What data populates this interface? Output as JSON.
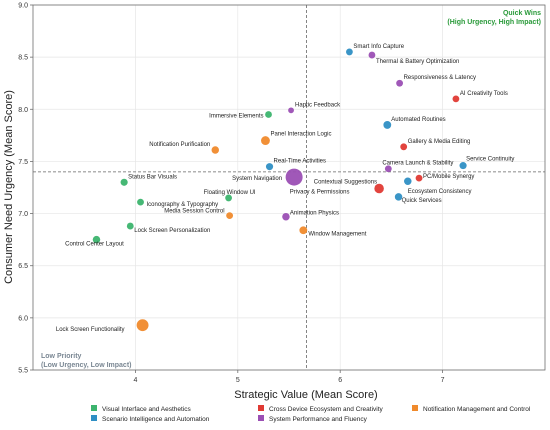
{
  "chart_data": {
    "type": "scatter",
    "title": "",
    "xlabel": "Strategic Value (Mean Score)",
    "ylabel": "Consumer Need Urgency (Mean Score)",
    "xlim": [
      3.0,
      8.0
    ],
    "ylim": [
      5.5,
      9.0
    ],
    "xticks": [
      "4",
      "5",
      "6",
      "7"
    ],
    "yticks": [
      "5.5",
      "6.0",
      "6.5",
      "7.0",
      "7.5",
      "8.0",
      "8.5",
      "9.0"
    ],
    "grid": true,
    "reference_lines": {
      "x": 5.67,
      "y": 7.4
    },
    "legend_position": "bottom",
    "categories": [
      {
        "name": "Visual Interface and Aesthetics",
        "color": "#3cb46e"
      },
      {
        "name": "Scenario Intelligence and Automation",
        "color": "#2f8fc4"
      },
      {
        "name": "Cross Device Ecosystem and Creativity",
        "color": "#e03a34"
      },
      {
        "name": "System Performance and Fluency",
        "color": "#9b4fb4"
      },
      {
        "name": "Notification Management and Control",
        "color": "#f08a2c"
      }
    ],
    "quadrant_labels": [
      {
        "line1": "Quick Wins",
        "line2": "(High Urgency, High Impact)",
        "color": "#2a9a3a",
        "position": "top-right"
      },
      {
        "line1": "Low Priority",
        "line2": "(Low Urgency, Low Impact)",
        "color": "#7a8793",
        "position": "bottom-left"
      }
    ],
    "points": [
      {
        "label": "Smart Info Capture",
        "x": 6.09,
        "y": 8.55,
        "cat": 1,
        "size": 1,
        "dx": 4,
        "dy": -4,
        "anchor": "start"
      },
      {
        "label": "Thermal & Battery Optimization",
        "x": 6.31,
        "y": 8.52,
        "cat": 3,
        "size": 1,
        "dx": 4,
        "dy": 8,
        "anchor": "start"
      },
      {
        "label": "Responsiveness & Latency",
        "x": 6.58,
        "y": 8.25,
        "cat": 3,
        "size": 1,
        "dx": 4,
        "dy": -4,
        "anchor": "start"
      },
      {
        "label": "AI Creativity Tools",
        "x": 7.13,
        "y": 8.1,
        "cat": 2,
        "size": 1,
        "dx": 4,
        "dy": -4,
        "anchor": "start"
      },
      {
        "label": "Haptic Feedback",
        "x": 5.52,
        "y": 7.99,
        "cat": 3,
        "size": 0.85,
        "dx": 4,
        "dy": -4,
        "anchor": "start"
      },
      {
        "label": "Immersive Elements",
        "x": 5.3,
        "y": 7.95,
        "cat": 0,
        "size": 1,
        "dx": -5,
        "dy": 3,
        "anchor": "end"
      },
      {
        "label": "Automated Routines",
        "x": 6.46,
        "y": 7.85,
        "cat": 1,
        "size": 1.15,
        "dx": 4,
        "dy": -4,
        "anchor": "start"
      },
      {
        "label": "Panel Interaction Logic",
        "x": 5.27,
        "y": 7.7,
        "cat": 4,
        "size": 1.3,
        "dx": 5,
        "dy": -5,
        "anchor": "start"
      },
      {
        "label": "Gallery & Media Editing",
        "x": 6.62,
        "y": 7.64,
        "cat": 2,
        "size": 1,
        "dx": 4,
        "dy": -4,
        "anchor": "start"
      },
      {
        "label": "Notification Purification",
        "x": 4.78,
        "y": 7.61,
        "cat": 4,
        "size": 1.1,
        "dx": -5,
        "dy": -4,
        "anchor": "end"
      },
      {
        "label": "Real-Time Activities",
        "x": 5.31,
        "y": 7.45,
        "cat": 1,
        "size": 1.05,
        "dx": 4,
        "dy": -4,
        "anchor": "start"
      },
      {
        "label": "Service Continuity",
        "x": 7.2,
        "y": 7.46,
        "cat": 1,
        "size": 1.05,
        "dx": 3,
        "dy": -5,
        "anchor": "start"
      },
      {
        "label": "Camera Launch & Stability",
        "x": 6.47,
        "y": 7.43,
        "cat": 3,
        "size": 1,
        "dx": -6,
        "dy": -4,
        "anchor": "start"
      },
      {
        "label": "PC/Mobile Synergy",
        "x": 6.77,
        "y": 7.34,
        "cat": 2,
        "size": 1,
        "dx": 4,
        "dy": 0,
        "anchor": "start"
      },
      {
        "label": "System Navigation",
        "x": 5.55,
        "y": 7.35,
        "cat": 3,
        "size": 2.5,
        "dx": -12,
        "dy": 3,
        "anchor": "end"
      },
      {
        "label": "Status Bar Visuals",
        "x": 3.89,
        "y": 7.3,
        "cat": 0,
        "size": 1.05,
        "dx": 4,
        "dy": -4,
        "anchor": "start"
      },
      {
        "label": "Contextual Suggestions",
        "x": 6.38,
        "y": 7.24,
        "cat": 2,
        "size": 1.4,
        "dx": -2,
        "dy": -5,
        "anchor": "end"
      },
      {
        "label": "Privacy & Permissions",
        "x": 6.12,
        "y": 7.22,
        "cat": 4,
        "size": 0.01,
        "dx": -3,
        "dy": 3,
        "anchor": "end"
      },
      {
        "label": "Ecosystem Consistency",
        "x": 6.66,
        "y": 7.31,
        "cat": 1,
        "size": 1.1,
        "dx": 0,
        "dy": 12,
        "anchor": "start"
      },
      {
        "label": "Quick Services",
        "x": 6.57,
        "y": 7.16,
        "cat": 1,
        "size": 1.1,
        "dx": 3,
        "dy": 5,
        "anchor": "start"
      },
      {
        "label": "Floating Window UI",
        "x": 4.91,
        "y": 7.15,
        "cat": 0,
        "size": 1,
        "dx": -25,
        "dy": -4,
        "anchor": "start"
      },
      {
        "label": "Iconography & Typography",
        "x": 4.05,
        "y": 7.11,
        "cat": 0,
        "size": 1,
        "dx": 6,
        "dy": 4,
        "anchor": "start"
      },
      {
        "label": "Media Session Control",
        "x": 4.92,
        "y": 6.98,
        "cat": 4,
        "size": 1,
        "dx": -5,
        "dy": -3,
        "anchor": "end"
      },
      {
        "label": "Animation Physics",
        "x": 5.47,
        "y": 6.97,
        "cat": 3,
        "size": 1.1,
        "dx": 4,
        "dy": -2,
        "anchor": "start"
      },
      {
        "label": "Lock Screen Personalization",
        "x": 3.95,
        "y": 6.88,
        "cat": 0,
        "size": 1,
        "dx": 4,
        "dy": 6,
        "anchor": "start"
      },
      {
        "label": "Window Management",
        "x": 5.64,
        "y": 6.84,
        "cat": 4,
        "size": 1.15,
        "dx": 5,
        "dy": 5,
        "anchor": "start"
      },
      {
        "label": "Control Center Layout",
        "x": 3.62,
        "y": 6.75,
        "cat": 0,
        "size": 1.1,
        "dx": -2,
        "dy": 6,
        "anchor": "middle"
      },
      {
        "label": "Lock Screen Functionality",
        "x": 4.07,
        "y": 5.93,
        "cat": 4,
        "size": 1.75,
        "dx": -18,
        "dy": 6,
        "anchor": "end"
      }
    ]
  }
}
